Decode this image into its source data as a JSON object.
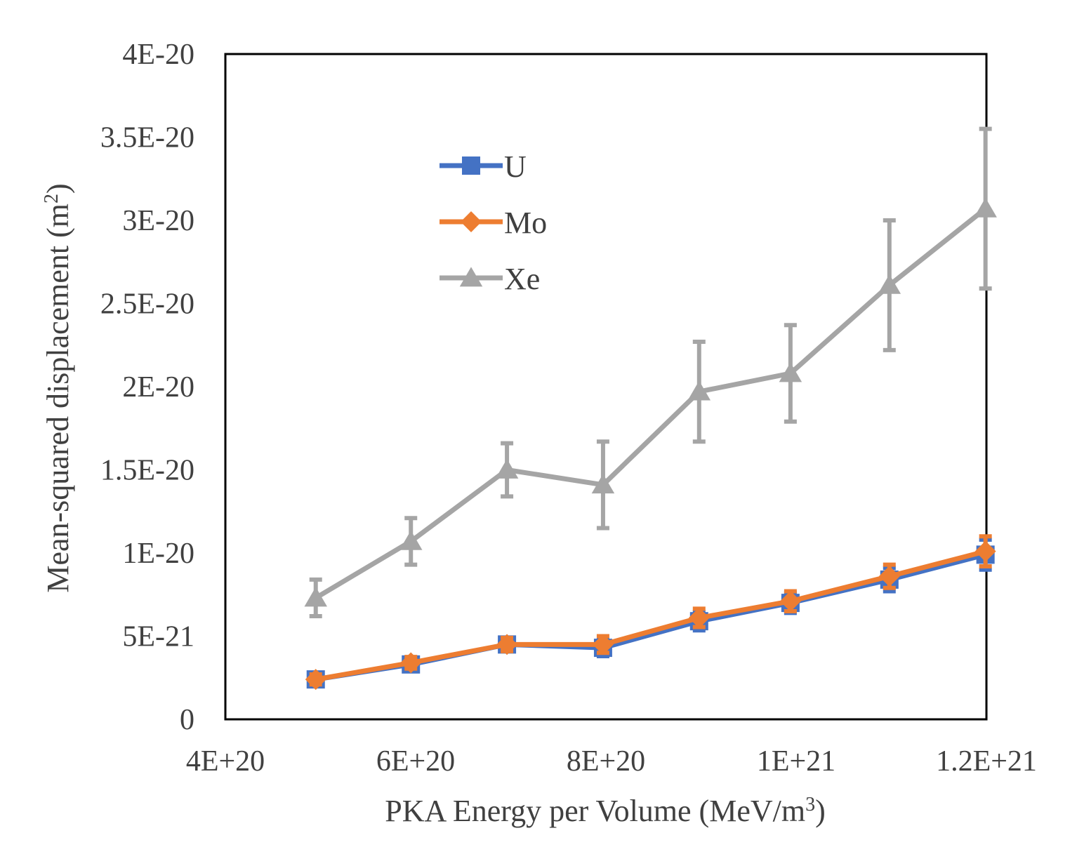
{
  "chart_data": {
    "type": "line",
    "title": "",
    "xlabel": "PKA Energy per Volume (MeV/m",
    "xlabel_sup": "3",
    "xlabel_end": ")",
    "ylabel": "Mean-squared displacement (m",
    "ylabel_sup": "2",
    "ylabel_end": ")",
    "xlim": [
      4e+20,
      1.2e+21
    ],
    "ylim": [
      0,
      4e-20
    ],
    "x_ticks": [
      4e+20,
      6e+20,
      8e+20,
      1e+21,
      1.2e+21
    ],
    "x_tick_labels": [
      "4E+20",
      "6E+20",
      "8E+20",
      "1E+21",
      "1.2E+21"
    ],
    "y_ticks": [
      0,
      5e-21,
      1e-20,
      1.5e-20,
      2e-20,
      2.5e-20,
      3e-20,
      3.5e-20,
      4e-20
    ],
    "y_tick_labels": [
      "0",
      "5E-21",
      "1E-20",
      "1.5E-20",
      "2E-20",
      "2.5E-20",
      "3E-20",
      "3.5E-20",
      "4E-20"
    ],
    "grid": false,
    "legend_position": "top-left",
    "x": [
      4.95e+20,
      5.95e+20,
      6.96e+20,
      7.97e+20,
      8.98e+20,
      9.94e+20,
      1.098e+21,
      1.199e+21
    ],
    "series": [
      {
        "name": "U",
        "color": "#4472C4",
        "marker": "square",
        "values": [
          2.4e-21,
          3.3e-21,
          4.5e-21,
          4.3e-21,
          5.9e-21,
          7e-21,
          8.4e-21,
          9.9e-21
        ],
        "errors": [
          3e-22,
          3.5e-22,
          4e-22,
          5e-22,
          5.5e-22,
          6e-22,
          7e-22,
          9e-22
        ]
      },
      {
        "name": "Mo",
        "color": "#ED7D31",
        "marker": "diamond",
        "values": [
          2.4e-21,
          3.4e-21,
          4.5e-21,
          4.5e-21,
          6.1e-21,
          7.1e-21,
          8.6e-21,
          1.01e-20
        ],
        "errors": [
          3e-22,
          3.5e-22,
          4e-22,
          5e-22,
          5.5e-22,
          6e-22,
          7e-22,
          9e-22
        ]
      },
      {
        "name": "Xe",
        "color": "#A5A5A5",
        "marker": "triangle",
        "values": [
          7.3e-21,
          1.07e-20,
          1.5e-20,
          1.41e-20,
          1.97e-20,
          2.08e-20,
          2.61e-20,
          3.07e-20
        ],
        "errors": [
          1.1e-21,
          1.4e-21,
          1.6e-21,
          2.6e-21,
          3e-21,
          2.9e-21,
          3.9e-21,
          4.8e-21
        ]
      }
    ]
  }
}
